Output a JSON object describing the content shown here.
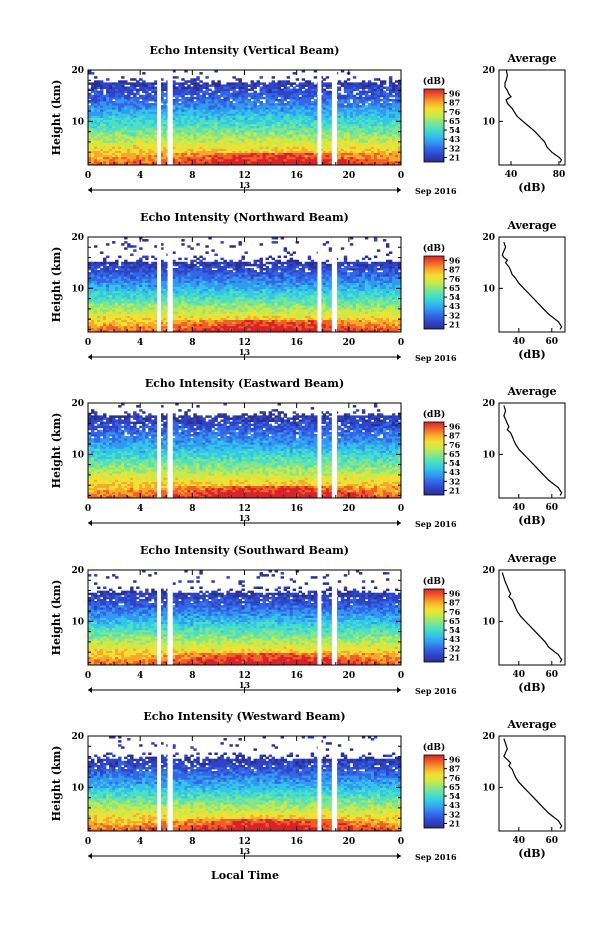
{
  "figure": {
    "xlabel_shared": "Local Time",
    "colorbar_unit": "(dB)",
    "profile_title": "Average",
    "profile_xlabel": "(dB)",
    "date_label": "Sep 2016",
    "day_marker": "13"
  },
  "colors": {
    "colormap": [
      "#2b2f8f",
      "#2e44c8",
      "#3366e6",
      "#3399f0",
      "#33c6e8",
      "#4be0c0",
      "#86e58a",
      "#c7ea4a",
      "#f4e033",
      "#f7a92b",
      "#f0602a",
      "#d8232a"
    ],
    "gap": "#ffffff",
    "frame": "#000000"
  },
  "chart_data": [
    {
      "type": "heatmap",
      "title": "Echo Intensity (Vertical Beam)",
      "xlabel": "",
      "ylabel": "Height (km)",
      "xticks": [
        "0",
        "4",
        "8",
        "12",
        "16",
        "20",
        "0"
      ],
      "xlim": [
        0,
        24
      ],
      "ylim": [
        1.5,
        20
      ],
      "yticks": [
        10,
        20
      ],
      "colorbar_ticks": [
        "96",
        "87",
        "76",
        "65",
        "54",
        "43",
        "32",
        "21"
      ],
      "data_gaps_hours": [
        [
          5.3,
          5.6
        ],
        [
          6.1,
          6.5
        ],
        [
          17.6,
          17.9
        ],
        [
          18.7,
          19.1
        ]
      ],
      "echo_top_km": 19,
      "profile": {
        "xticks": [
          40,
          80
        ],
        "xlim": [
          30,
          85
        ],
        "ylim": [
          1.5,
          20
        ],
        "x": [
          36,
          37,
          36,
          35,
          35,
          37,
          38,
          40,
          36,
          37,
          41,
          45,
          50,
          55,
          60,
          64,
          68,
          70,
          72,
          74,
          77,
          80,
          82,
          81
        ],
        "y": [
          20,
          19,
          18,
          17.5,
          16.7,
          16,
          15.4,
          14.8,
          14.2,
          13.5,
          12.5,
          11,
          10,
          9,
          8,
          7,
          6,
          5,
          4.5,
          4,
          3.5,
          3,
          2.5,
          2
        ]
      }
    },
    {
      "type": "heatmap",
      "title": "Echo Intensity (Northward Beam)",
      "xlabel": "",
      "ylabel": "Height (km)",
      "xticks": [
        "0",
        "4",
        "8",
        "12",
        "16",
        "20",
        "0"
      ],
      "xlim": [
        0,
        24
      ],
      "ylim": [
        1.5,
        20
      ],
      "yticks": [
        10,
        20
      ],
      "colorbar_ticks": [
        "96",
        "87",
        "76",
        "65",
        "54",
        "43",
        "32",
        "21"
      ],
      "data_gaps_hours": [
        [
          5.3,
          5.6
        ],
        [
          6.1,
          6.5
        ],
        [
          17.6,
          17.9
        ],
        [
          18.7,
          19.1
        ]
      ],
      "echo_top_km": 16.5,
      "profile": {
        "xticks": [
          40,
          60
        ],
        "xlim": [
          28,
          68
        ],
        "ylim": [
          1.5,
          20
        ],
        "x": [
          31,
          32,
          31,
          30,
          31,
          33,
          32,
          34,
          35,
          36,
          38,
          40,
          43,
          46,
          49,
          52,
          55,
          58,
          60,
          62,
          64,
          65,
          66,
          65
        ],
        "y": [
          19,
          18,
          17.3,
          16.5,
          16,
          15.5,
          15,
          14.2,
          13.5,
          12.7,
          12,
          11,
          10,
          9,
          8,
          7,
          6,
          5,
          4.5,
          4,
          3.5,
          3,
          2.5,
          2
        ]
      }
    },
    {
      "type": "heatmap",
      "title": "Echo Intensity (Eastward Beam)",
      "xlabel": "",
      "ylabel": "Height (km)",
      "xticks": [
        "0",
        "4",
        "8",
        "12",
        "16",
        "20",
        "0"
      ],
      "xlim": [
        0,
        24
      ],
      "ylim": [
        1.5,
        20
      ],
      "yticks": [
        10,
        20
      ],
      "colorbar_ticks": [
        "96",
        "87",
        "76",
        "65",
        "54",
        "43",
        "32",
        "21"
      ],
      "data_gaps_hours": [
        [
          5.3,
          5.6
        ],
        [
          6.1,
          6.5
        ],
        [
          17.6,
          17.9
        ],
        [
          18.7,
          19.1
        ]
      ],
      "echo_top_km": 19,
      "profile": {
        "xticks": [
          40,
          60
        ],
        "xlim": [
          28,
          68
        ],
        "ylim": [
          1.5,
          20
        ],
        "x": [
          31,
          32,
          31,
          32,
          33,
          34,
          33,
          35,
          36,
          37,
          38,
          40,
          43,
          46,
          49,
          52,
          55,
          58,
          60,
          62,
          64,
          65,
          66,
          65
        ],
        "y": [
          19.5,
          18.5,
          17.5,
          16.8,
          16,
          15.4,
          14.8,
          14.2,
          13.5,
          12.7,
          12,
          11,
          10,
          9,
          8,
          7,
          6,
          5,
          4.5,
          4,
          3.5,
          3,
          2.5,
          2
        ]
      }
    },
    {
      "type": "heatmap",
      "title": "Echo Intensity (Southward Beam)",
      "xlabel": "",
      "ylabel": "Height (km)",
      "xticks": [
        "0",
        "4",
        "8",
        "12",
        "16",
        "20",
        "0"
      ],
      "xlim": [
        0,
        24
      ],
      "ylim": [
        1.5,
        20
      ],
      "yticks": [
        10,
        20
      ],
      "colorbar_ticks": [
        "96",
        "87",
        "76",
        "65",
        "54",
        "43",
        "32",
        "21"
      ],
      "data_gaps_hours": [
        [
          5.3,
          5.6
        ],
        [
          6.1,
          6.5
        ],
        [
          17.6,
          17.9
        ],
        [
          18.7,
          19.1
        ]
      ],
      "echo_top_km": 17,
      "profile": {
        "xticks": [
          40,
          60
        ],
        "xlim": [
          28,
          68
        ],
        "ylim": [
          1.5,
          20
        ],
        "x": [
          30,
          31,
          32,
          33,
          34,
          35,
          34,
          36,
          37,
          38,
          39,
          41,
          44,
          47,
          50,
          53,
          56,
          58,
          60,
          62,
          64,
          65,
          66,
          65
        ],
        "y": [
          19.5,
          18.5,
          17.5,
          16.8,
          16,
          15.4,
          14.8,
          14.2,
          13.5,
          12.7,
          12,
          11,
          10,
          9,
          8,
          7,
          6,
          5,
          4.5,
          4,
          3.5,
          3,
          2.5,
          2
        ]
      }
    },
    {
      "type": "heatmap",
      "title": "Echo Intensity (Westward Beam)",
      "xlabel": "",
      "ylabel": "Height (km)",
      "xticks": [
        "0",
        "4",
        "8",
        "12",
        "16",
        "20",
        "0"
      ],
      "xlim": [
        0,
        24
      ],
      "ylim": [
        1.5,
        20
      ],
      "yticks": [
        10,
        20
      ],
      "colorbar_ticks": [
        "96",
        "87",
        "76",
        "65",
        "54",
        "43",
        "32",
        "21"
      ],
      "data_gaps_hours": [
        [
          5.3,
          5.6
        ],
        [
          6.1,
          6.5
        ],
        [
          17.6,
          17.9
        ],
        [
          18.7,
          19.1
        ]
      ],
      "echo_top_km": 17,
      "profile": {
        "xticks": [
          40,
          60
        ],
        "xlim": [
          28,
          68
        ],
        "ylim": [
          1.5,
          20
        ],
        "x": [
          31,
          32,
          33,
          32,
          31,
          33,
          35,
          34,
          36,
          37,
          38,
          40,
          43,
          46,
          49,
          52,
          55,
          58,
          60,
          62,
          64,
          65,
          66,
          65
        ],
        "y": [
          19.5,
          18.5,
          17.5,
          16.8,
          16,
          15.4,
          14.8,
          14.2,
          13.5,
          12.7,
          12,
          11,
          10,
          9,
          8,
          7,
          6,
          5,
          4.5,
          4,
          3.5,
          3,
          2.5,
          2
        ]
      }
    }
  ]
}
